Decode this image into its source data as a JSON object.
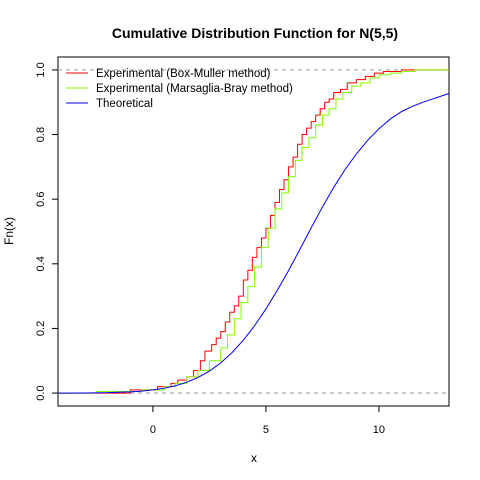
{
  "chart_data": {
    "type": "line",
    "title": "Cumulative Distribution Function for N(5,5)",
    "xlabel": "x",
    "ylabel": "Fn(x)",
    "xlim": [
      -4.2,
      13.1
    ],
    "ylim": [
      -0.04,
      1.04
    ],
    "xticks": [
      0,
      5,
      10
    ],
    "yticks": [
      0.0,
      0.2,
      0.4,
      0.6,
      0.8,
      1.0
    ],
    "xtick_labels": [
      "0",
      "5",
      "10"
    ],
    "ytick_labels": [
      "0.0",
      "0.2",
      "0.4",
      "0.6",
      "0.8",
      "1.0"
    ],
    "reference_lines": [
      0,
      1
    ],
    "reference_line_color": "#a6a6a6",
    "legend_position": "top-left",
    "series": [
      {
        "name": "Experimental (Box-Muller method)",
        "color": "#ff0000",
        "style": "step",
        "x": [
          -4.2,
          -1.0,
          0.2,
          0.8,
          1.1,
          1.5,
          1.8,
          2.1,
          2.3,
          2.6,
          2.8,
          3.0,
          3.2,
          3.4,
          3.6,
          3.8,
          4.0,
          4.2,
          4.4,
          4.6,
          4.8,
          5.0,
          5.2,
          5.4,
          5.6,
          5.8,
          6.0,
          6.2,
          6.4,
          6.6,
          6.8,
          7.0,
          7.2,
          7.4,
          7.6,
          7.8,
          8.0,
          8.3,
          8.6,
          9.0,
          9.4,
          9.8,
          10.2,
          11.0,
          13.1
        ],
        "y": [
          0.0,
          0.01,
          0.02,
          0.03,
          0.04,
          0.05,
          0.07,
          0.1,
          0.13,
          0.15,
          0.17,
          0.19,
          0.22,
          0.25,
          0.27,
          0.3,
          0.35,
          0.38,
          0.42,
          0.45,
          0.48,
          0.51,
          0.55,
          0.59,
          0.63,
          0.66,
          0.7,
          0.73,
          0.77,
          0.8,
          0.82,
          0.84,
          0.86,
          0.88,
          0.9,
          0.91,
          0.93,
          0.94,
          0.96,
          0.97,
          0.98,
          0.99,
          0.995,
          1.0,
          1.0
        ]
      },
      {
        "name": "Experimental (Marsaglia-Bray method)",
        "color": "#7fff00",
        "style": "step",
        "x": [
          -4.2,
          -2.5,
          -0.5,
          0.5,
          1.0,
          1.5,
          2.0,
          2.5,
          3.0,
          3.3,
          3.6,
          3.9,
          4.2,
          4.5,
          4.8,
          5.1,
          5.4,
          5.7,
          6.0,
          6.3,
          6.6,
          6.9,
          7.2,
          7.5,
          7.8,
          8.1,
          8.4,
          8.8,
          9.2,
          9.6,
          10.0,
          10.5,
          11.0,
          11.6,
          13.1
        ],
        "y": [
          0.0,
          0.005,
          0.01,
          0.02,
          0.03,
          0.05,
          0.07,
          0.1,
          0.14,
          0.18,
          0.23,
          0.28,
          0.33,
          0.39,
          0.45,
          0.51,
          0.57,
          0.62,
          0.67,
          0.72,
          0.76,
          0.79,
          0.83,
          0.86,
          0.88,
          0.91,
          0.93,
          0.95,
          0.96,
          0.975,
          0.985,
          0.99,
          0.995,
          1.0,
          1.0
        ]
      },
      {
        "name": "Theoretical",
        "color": "#0000ff",
        "style": "line",
        "x": [
          -4.2,
          -3.0,
          -2.0,
          -1.0,
          -0.5,
          0.0,
          0.5,
          1.0,
          1.5,
          2.0,
          2.5,
          3.0,
          3.5,
          4.0,
          4.5,
          5.0,
          5.5,
          6.0,
          6.5,
          7.0,
          7.5,
          8.0,
          8.5,
          9.0,
          9.5,
          10.0,
          10.5,
          11.0,
          11.5,
          12.0,
          13.1
        ],
        "y": [
          0.0,
          0.0004,
          0.0013,
          0.0038,
          0.0062,
          0.0098,
          0.0151,
          0.0228,
          0.0336,
          0.0484,
          0.0681,
          0.0934,
          0.1251,
          0.1635,
          0.2087,
          0.2603,
          0.3176,
          0.379,
          0.4443,
          0.5111,
          0.5756,
          0.6368,
          0.6915,
          0.7398,
          0.7823,
          0.818,
          0.8479,
          0.871,
          0.8878,
          0.9013,
          0.927
        ]
      }
    ]
  }
}
